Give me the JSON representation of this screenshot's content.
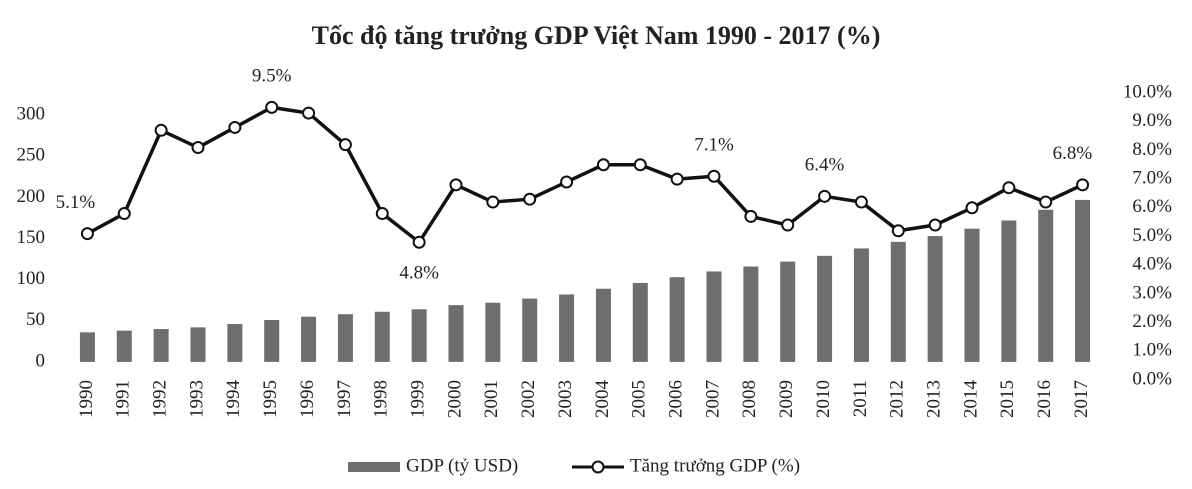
{
  "chart_data": {
    "type": "bar-line",
    "title": "Tốc độ tăng trưởng GDP Việt Nam 1990 - 2017 (%)",
    "categories": [
      "1990",
      "1991",
      "1992",
      "1993",
      "1994",
      "1995",
      "1996",
      "1997",
      "1998",
      "1999",
      "2000",
      "2001",
      "2002",
      "2003",
      "2004",
      "2005",
      "2006",
      "2007",
      "2008",
      "2009",
      "2010",
      "2011",
      "2012",
      "2013",
      "2014",
      "2015",
      "2016",
      "2017"
    ],
    "series": [
      {
        "name": "GDP (tỷ USD)",
        "type": "bar",
        "color": "#6e6e6e",
        "values": [
          36,
          38,
          40,
          42,
          46,
          51,
          55,
          58,
          61,
          64,
          69,
          72,
          77,
          82,
          89,
          96,
          103,
          110,
          116,
          122,
          129,
          138,
          146,
          153,
          162,
          172,
          185,
          197
        ]
      },
      {
        "name": "Tăng trưởng GDP (%)",
        "type": "line",
        "axis": "y2",
        "color": "#111111",
        "values": [
          5.1,
          5.8,
          8.7,
          8.1,
          8.8,
          9.5,
          9.3,
          8.2,
          5.8,
          4.8,
          6.8,
          6.2,
          6.3,
          6.9,
          7.5,
          7.5,
          7.0,
          7.1,
          5.7,
          5.4,
          6.4,
          6.2,
          5.2,
          5.4,
          6.0,
          6.7,
          6.2,
          6.8
        ],
        "value_labels": [
          "5.1%",
          null,
          null,
          null,
          null,
          "9.5%",
          null,
          null,
          null,
          "4.8%",
          null,
          null,
          null,
          null,
          null,
          null,
          null,
          "7.1%",
          null,
          null,
          "6.4%",
          null,
          null,
          null,
          null,
          null,
          null,
          "6.8%"
        ]
      }
    ],
    "ylim": [
      -22,
      327
    ],
    "yticks": [
      0,
      50,
      100,
      150,
      200,
      250,
      300
    ],
    "y2lim": [
      0,
      10
    ],
    "y2ticks": [
      {
        "value": 0,
        "label": "0.0%"
      },
      {
        "value": 1,
        "label": "1.0%"
      },
      {
        "value": 2,
        "label": "2.0%"
      },
      {
        "value": 3,
        "label": "3.0%"
      },
      {
        "value": 4,
        "label": "4.0%"
      },
      {
        "value": 5,
        "label": "5.0%"
      },
      {
        "value": 6,
        "label": "6.0%"
      },
      {
        "value": 7,
        "label": "7.0%"
      },
      {
        "value": 8,
        "label": "8.0%"
      },
      {
        "value": 9,
        "label": "9.0%"
      },
      {
        "value": 10,
        "label": "10.0%"
      }
    ],
    "legend": "bottom"
  }
}
